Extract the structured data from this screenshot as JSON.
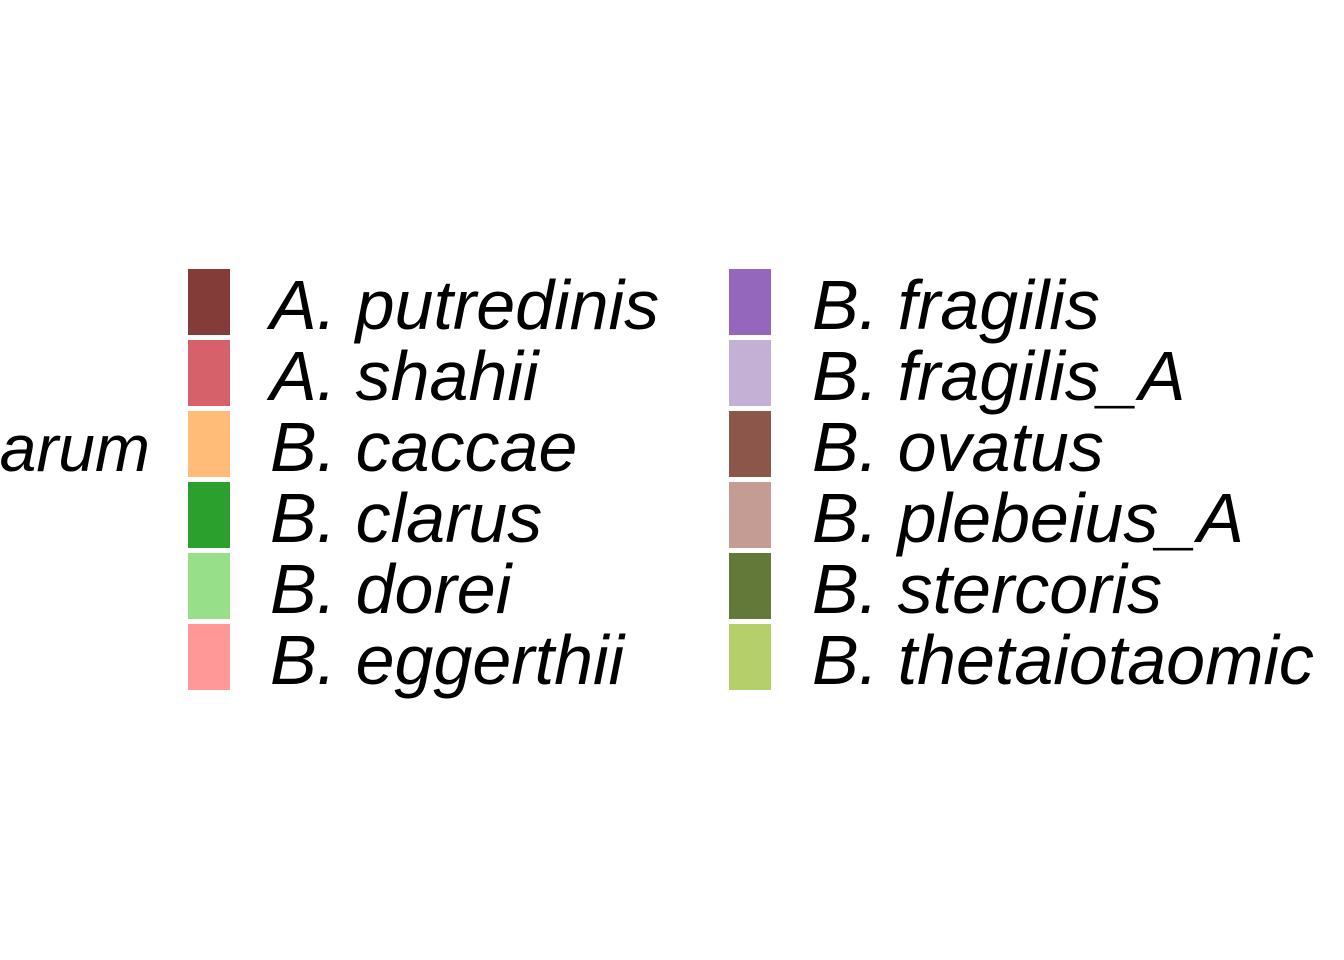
{
  "chart_data": {
    "type": "legend",
    "title": "arum",
    "legend_columns": 2,
    "entries": [
      {
        "label": "A. putredinis",
        "color": "#843C39"
      },
      {
        "label": "A. shahii",
        "color": "#D6616B"
      },
      {
        "label": "B. caccae",
        "color": "#FFBB78"
      },
      {
        "label": "B. clarus",
        "color": "#2CA02C"
      },
      {
        "label": "B. dorei",
        "color": "#98DF8A"
      },
      {
        "label": "B. eggerthii",
        "color": "#FF9896"
      },
      {
        "label": "B. fragilis",
        "color": "#9467BD"
      },
      {
        "label": "B. fragilis_A",
        "color": "#C5B0D5"
      },
      {
        "label": "B. ovatus",
        "color": "#8C564B"
      },
      {
        "label": "B. plebeius_A",
        "color": "#C49C94"
      },
      {
        "label": "B. stercoris",
        "color": "#637939"
      },
      {
        "label": "B. thetaiotaomic",
        "color": "#B5CF6B"
      }
    ]
  }
}
